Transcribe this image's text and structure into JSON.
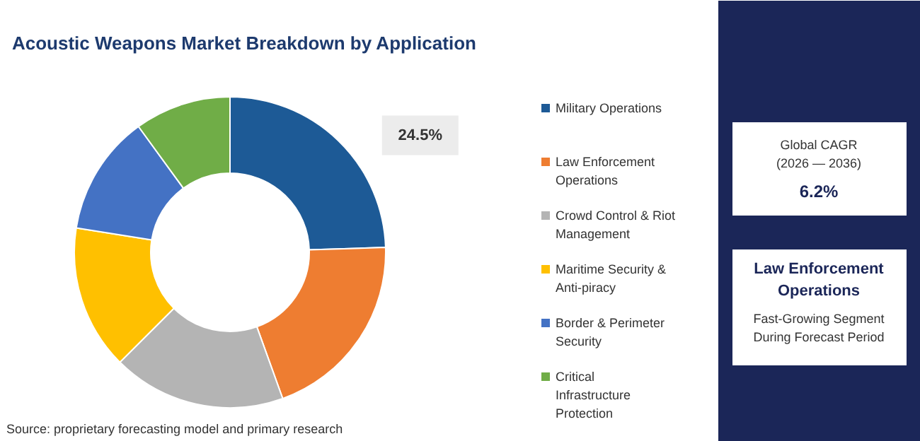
{
  "chart_data": {
    "type": "donut",
    "title": "Acoustic Weapons Market Breakdown by Application",
    "categories": [
      "Military Operations",
      "Law Enforcement Operations",
      "Crowd Control & Riot Management",
      "Maritime Security & Anti-piracy",
      "Border & Perimeter Security",
      "Critical Infrastructure Protection"
    ],
    "values": [
      24.5,
      20,
      18,
      15,
      12.5,
      10
    ],
    "colors": [
      "#1d5a96",
      "#ee7d31",
      "#b4b4b4",
      "#ffc000",
      "#4472c4",
      "#70ad47"
    ],
    "value_labels": [
      "24.5%",
      null,
      null,
      null,
      null,
      null
    ],
    "legend": "right",
    "annotations": [
      "Global CAGR\n(2026 — 2036)",
      "6.2%",
      "Law Enforcement\nOperations",
      "Fast-Growing Segment\nDuring Forecast Period",
      "Source: proprietary forecasting model and primary research"
    ]
  }
}
